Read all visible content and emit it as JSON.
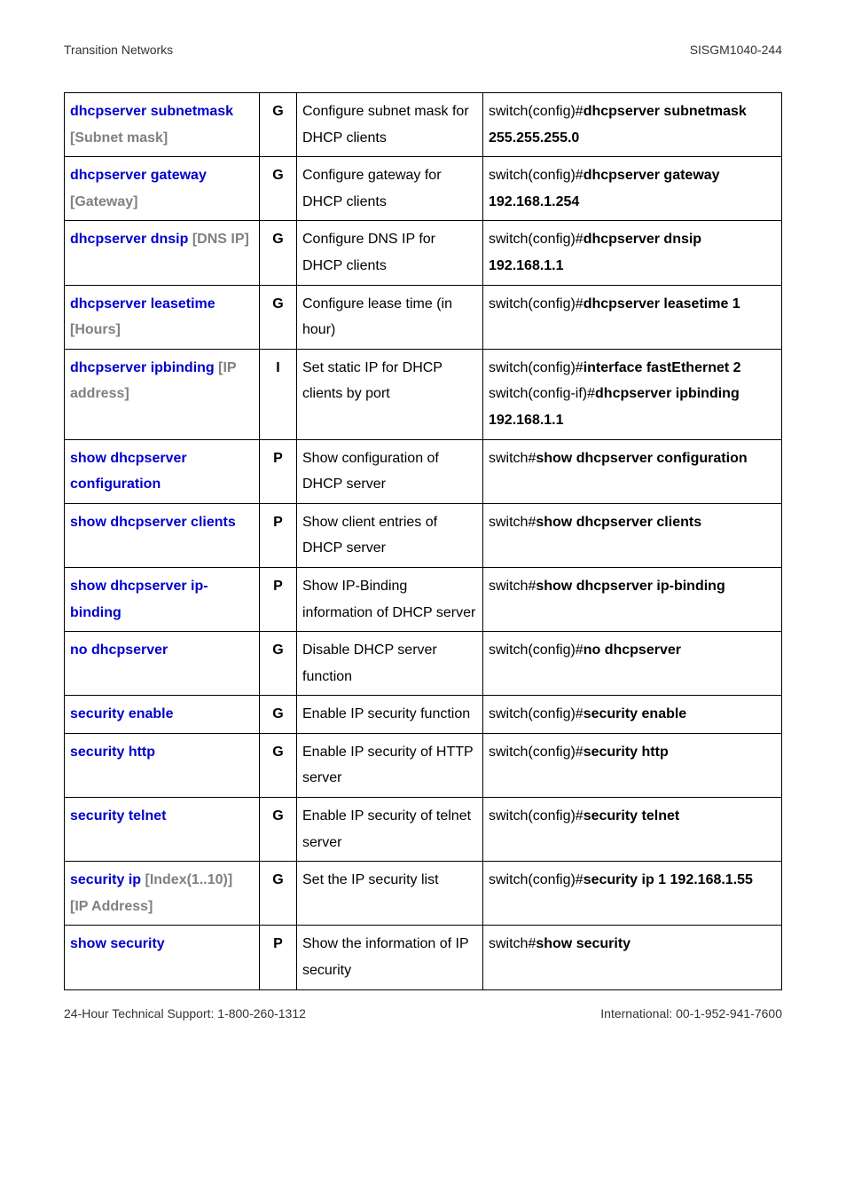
{
  "header": {
    "left": "Transition Networks",
    "right": "SISGM1040-244"
  },
  "footer": {
    "left": "24-Hour Technical Support: 1-800-260-1312",
    "right": "International: 00-1-952-941-7600"
  },
  "col_widths": [
    "220px",
    "42px",
    "210px",
    "auto"
  ],
  "rows": [
    {
      "cmd": "dhcpserver subnetmask",
      "arg": "[Subnet mask]",
      "mode": "G",
      "desc": "Configure subnet mask for DHCP clients",
      "ex": [
        {
          "pre": "switch(config)#",
          "b": "dhcpserver subnetmask 255.255.255.0"
        }
      ]
    },
    {
      "cmd": "dhcpserver gateway",
      "arg": "[Gateway]",
      "mode": "G",
      "desc": "Configure gateway for DHCP clients",
      "ex": [
        {
          "pre": "switch(config)#",
          "b": "dhcpserver gateway 192.168.1.254"
        }
      ]
    },
    {
      "cmd": "dhcpserver dnsip",
      "arg": "[DNS IP]",
      "mode": "G",
      "desc": "Configure DNS IP for DHCP clients",
      "ex": [
        {
          "pre": "switch(config)#",
          "b": "dhcpserver dnsip 192.168.1.1"
        }
      ]
    },
    {
      "cmd": "dhcpserver leasetime",
      "arg": "[Hours]",
      "mode": "G",
      "desc": "Configure lease time (in hour)",
      "ex": [
        {
          "pre": "switch(config)#",
          "b": "dhcpserver leasetime 1"
        }
      ]
    },
    {
      "cmd": "dhcpserver ipbinding",
      "arg": "[IP address]",
      "mode": "I",
      "desc": "Set static IP for DHCP clients by port",
      "ex": [
        {
          "pre": "switch(config)#",
          "b": "interface fastEthernet 2"
        },
        {
          "pre": "switch(config-if)#",
          "b": "dhcpserver ipbinding 192.168.1.1"
        }
      ]
    },
    {
      "cmd": "show dhcpserver configuration",
      "arg": "",
      "mode": "P",
      "desc": "Show configuration of DHCP server",
      "ex": [
        {
          "pre": "switch#",
          "b": "show dhcpserver configuration"
        }
      ]
    },
    {
      "cmd": "show dhcpserver clients",
      "arg": "",
      "mode": "P",
      "desc": "Show client entries of DHCP server",
      "ex": [
        {
          "pre": "switch#",
          "b": "show dhcpserver clients"
        }
      ]
    },
    {
      "cmd": "show dhcpserver ip-binding",
      "arg": "",
      "mode": "P",
      "desc": "Show IP-Binding information of DHCP server",
      "ex": [
        {
          "pre": "switch#",
          "b": "show dhcpserver ip-binding"
        }
      ]
    },
    {
      "cmd": "no dhcpserver",
      "arg": "",
      "mode": "G",
      "desc": "Disable DHCP server function",
      "ex": [
        {
          "pre": "switch(config)#",
          "b": "no dhcpserver"
        }
      ]
    },
    {
      "cmd": "security enable",
      "arg": "",
      "mode": "G",
      "desc": "Enable IP security function",
      "ex": [
        {
          "pre": "switch(config)#",
          "b": "security enable"
        }
      ]
    },
    {
      "cmd": "security http",
      "arg": "",
      "mode": "G",
      "desc": "Enable IP security of HTTP server",
      "ex": [
        {
          "pre": "switch(config)#",
          "b": "security http"
        }
      ]
    },
    {
      "cmd": "security telnet",
      "arg": "",
      "mode": "G",
      "desc": "Enable IP security of telnet server",
      "ex": [
        {
          "pre": "switch(config)#",
          "b": "security telnet"
        }
      ]
    },
    {
      "cmd": "security ip",
      "arg": "[Index(1..10)] [IP Address]",
      "mode": "G",
      "desc": "Set the IP security list",
      "ex": [
        {
          "pre": "switch(config)#",
          "b": "security ip 1 192.168.1.55"
        }
      ]
    },
    {
      "cmd": "show security",
      "arg": "",
      "mode": "P",
      "desc": "Show the information of IP security",
      "ex": [
        {
          "pre": "switch#",
          "b": "show security"
        }
      ]
    }
  ]
}
